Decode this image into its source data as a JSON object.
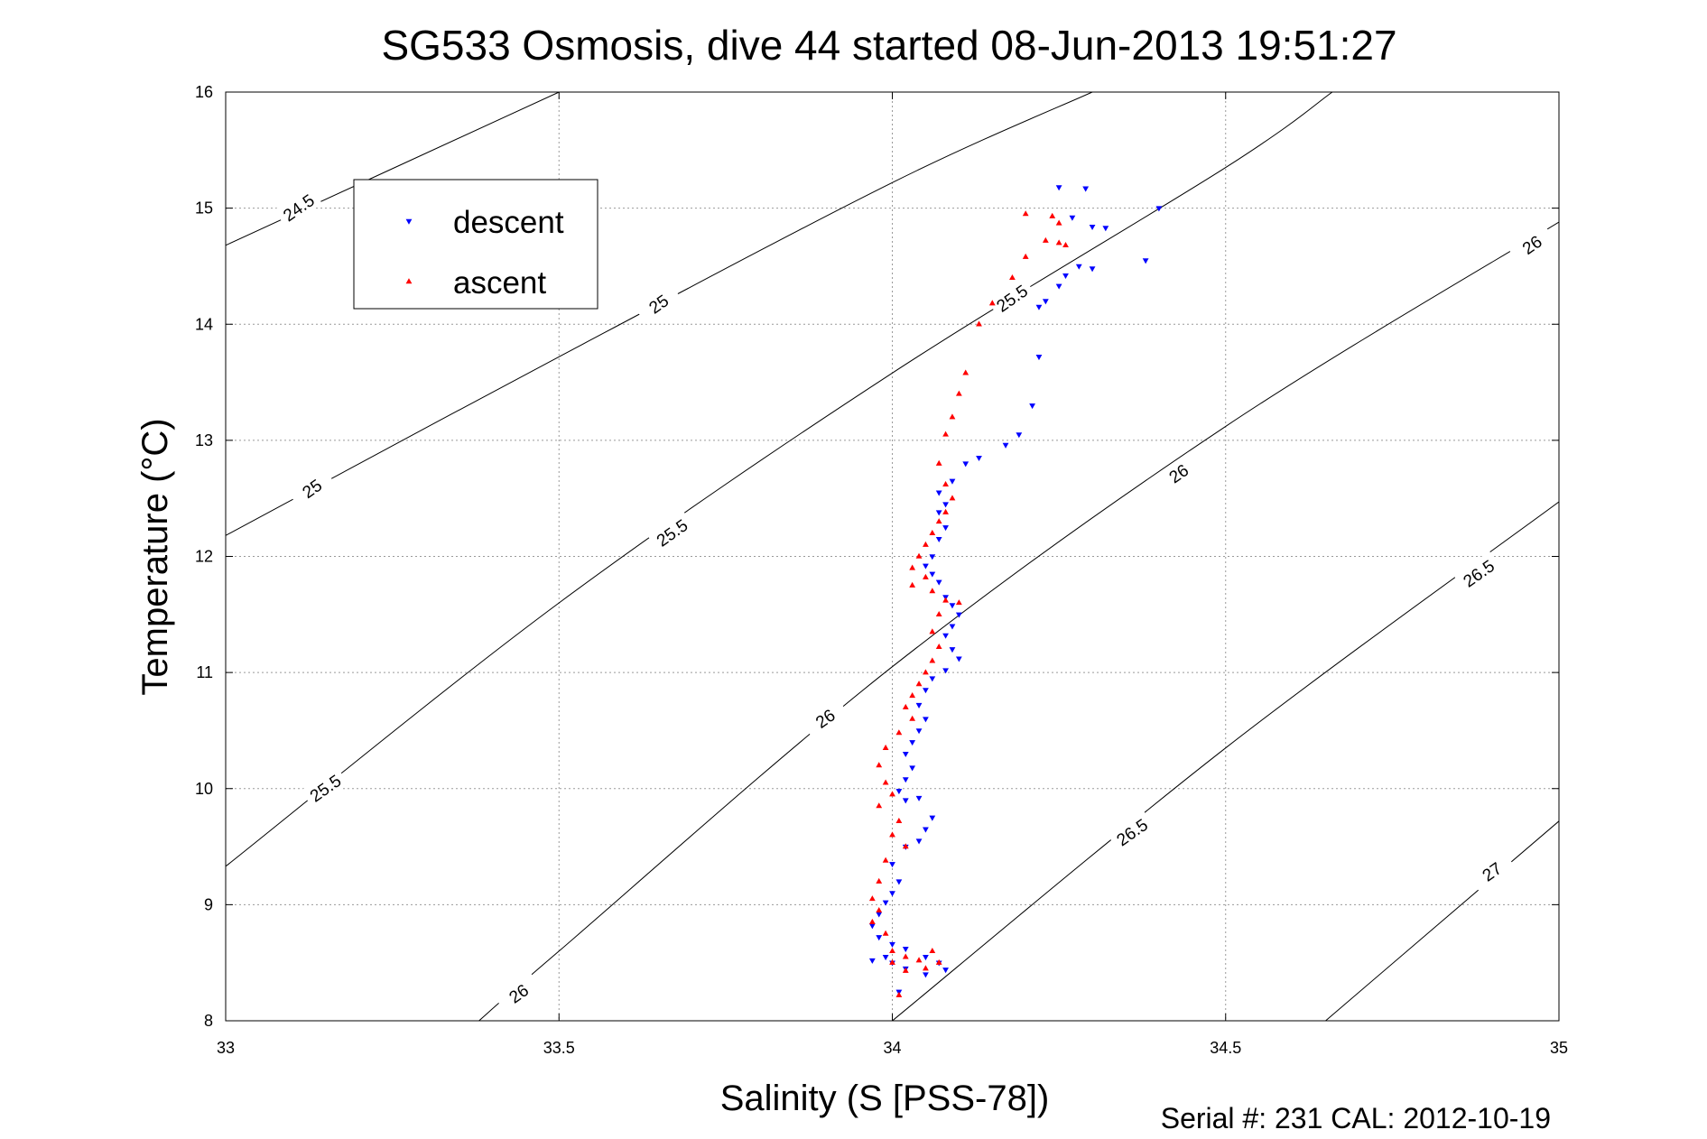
{
  "chart_data": {
    "type": "scatter",
    "title": "SG533 Osmosis, dive 44 started 08-Jun-2013 19:51:27",
    "xlabel": "Salinity (S [PSS-78])",
    "ylabel": "Temperature (°C)",
    "xlim": [
      33,
      35
    ],
    "ylim": [
      8,
      16
    ],
    "xticks": [
      "33",
      "33.5",
      "34",
      "34.5",
      "35"
    ],
    "yticks": [
      "8",
      "9",
      "10",
      "11",
      "12",
      "13",
      "14",
      "15",
      "16"
    ],
    "grid": true,
    "legend_position": "top-left",
    "footer": "Serial #: 231  CAL: 2012-10-19",
    "contours": [
      {
        "label": "24.5",
        "points": [
          [
            33,
            14.68
          ],
          [
            33.5,
            16.0
          ]
        ]
      },
      {
        "label": "25",
        "points": [
          [
            33,
            12.18
          ],
          [
            33.5,
            13.72
          ],
          [
            34.0,
            15.22
          ],
          [
            34.3,
            16.0
          ]
        ]
      },
      {
        "label": "25.5",
        "points": [
          [
            33,
            9.33
          ],
          [
            33.5,
            11.6
          ],
          [
            34.0,
            13.58
          ],
          [
            34.5,
            15.35
          ],
          [
            34.66,
            16.0
          ]
        ]
      },
      {
        "label": "26",
        "points": [
          [
            33.38,
            8.0
          ],
          [
            33.5,
            8.6
          ],
          [
            34.0,
            11.05
          ],
          [
            34.5,
            13.12
          ],
          [
            35.0,
            14.88
          ]
        ]
      },
      {
        "label": "26.5",
        "points": [
          [
            34.0,
            8.0
          ],
          [
            34.5,
            10.35
          ],
          [
            35.0,
            12.47
          ]
        ]
      },
      {
        "label": "27",
        "points": [
          [
            34.65,
            8.0
          ],
          [
            35.0,
            9.72
          ]
        ]
      }
    ],
    "contour_labels": [
      {
        "text": "24.5",
        "x": 33.11,
        "y": 15.0
      },
      {
        "text": "25",
        "x": 33.13,
        "y": 12.58
      },
      {
        "text": "25",
        "x": 33.65,
        "y": 14.17
      },
      {
        "text": "25.5",
        "x": 33.15,
        "y": 10.0
      },
      {
        "text": "25.5",
        "x": 33.67,
        "y": 12.2
      },
      {
        "text": "25.5",
        "x": 34.18,
        "y": 14.22
      },
      {
        "text": "26",
        "x": 33.44,
        "y": 8.23
      },
      {
        "text": "26",
        "x": 33.9,
        "y": 10.6
      },
      {
        "text": "26",
        "x": 34.43,
        "y": 12.71
      },
      {
        "text": "26",
        "x": 34.96,
        "y": 14.68
      },
      {
        "text": "26.5",
        "x": 34.36,
        "y": 9.62
      },
      {
        "text": "26.5",
        "x": 34.88,
        "y": 11.85
      },
      {
        "text": "27",
        "x": 34.9,
        "y": 9.28
      }
    ],
    "series": [
      {
        "name": "descent",
        "marker": "triangle-down",
        "color": "#0000ff",
        "points": [
          [
            34.25,
            15.18
          ],
          [
            34.29,
            15.17
          ],
          [
            34.27,
            14.92
          ],
          [
            34.3,
            14.84
          ],
          [
            34.32,
            14.83
          ],
          [
            34.4,
            15.0
          ],
          [
            34.28,
            14.5
          ],
          [
            34.3,
            14.48
          ],
          [
            34.26,
            14.42
          ],
          [
            34.25,
            14.33
          ],
          [
            34.23,
            14.2
          ],
          [
            34.22,
            14.15
          ],
          [
            34.38,
            14.55
          ],
          [
            34.22,
            13.72
          ],
          [
            34.21,
            13.3
          ],
          [
            34.19,
            13.05
          ],
          [
            34.17,
            12.96
          ],
          [
            34.13,
            12.85
          ],
          [
            34.11,
            12.8
          ],
          [
            34.09,
            12.65
          ],
          [
            34.07,
            12.55
          ],
          [
            34.08,
            12.45
          ],
          [
            34.07,
            12.38
          ],
          [
            34.08,
            12.25
          ],
          [
            34.07,
            12.15
          ],
          [
            34.06,
            12.0
          ],
          [
            34.05,
            11.92
          ],
          [
            34.06,
            11.85
          ],
          [
            34.07,
            11.78
          ],
          [
            34.08,
            11.65
          ],
          [
            34.09,
            11.58
          ],
          [
            34.1,
            11.5
          ],
          [
            34.09,
            11.4
          ],
          [
            34.08,
            11.32
          ],
          [
            34.09,
            11.2
          ],
          [
            34.1,
            11.12
          ],
          [
            34.08,
            11.02
          ],
          [
            34.06,
            10.95
          ],
          [
            34.05,
            10.85
          ],
          [
            34.04,
            10.72
          ],
          [
            34.05,
            10.6
          ],
          [
            34.04,
            10.5
          ],
          [
            34.03,
            10.4
          ],
          [
            34.02,
            10.3
          ],
          [
            34.03,
            10.18
          ],
          [
            34.02,
            10.08
          ],
          [
            34.01,
            9.98
          ],
          [
            34.02,
            9.9
          ],
          [
            34.04,
            9.92
          ],
          [
            34.06,
            9.75
          ],
          [
            34.05,
            9.65
          ],
          [
            34.04,
            9.55
          ],
          [
            34.02,
            9.5
          ],
          [
            34.0,
            9.35
          ],
          [
            34.01,
            9.2
          ],
          [
            34.0,
            9.1
          ],
          [
            33.99,
            9.02
          ],
          [
            33.98,
            8.92
          ],
          [
            33.97,
            8.82
          ],
          [
            33.98,
            8.72
          ],
          [
            34.0,
            8.66
          ],
          [
            34.02,
            8.62
          ],
          [
            34.05,
            8.55
          ],
          [
            34.07,
            8.5
          ],
          [
            34.08,
            8.44
          ],
          [
            34.05,
            8.4
          ],
          [
            34.02,
            8.45
          ],
          [
            34.0,
            8.5
          ],
          [
            33.99,
            8.55
          ],
          [
            33.97,
            8.52
          ],
          [
            34.01,
            8.25
          ]
        ]
      },
      {
        "name": "ascent",
        "marker": "triangle-up",
        "color": "#ff0000",
        "points": [
          [
            34.2,
            14.95
          ],
          [
            34.24,
            14.93
          ],
          [
            34.25,
            14.87
          ],
          [
            34.23,
            14.72
          ],
          [
            34.25,
            14.7
          ],
          [
            34.26,
            14.68
          ],
          [
            34.2,
            14.58
          ],
          [
            34.18,
            14.4
          ],
          [
            34.15,
            14.18
          ],
          [
            34.13,
            14.0
          ],
          [
            34.11,
            13.58
          ],
          [
            34.1,
            13.4
          ],
          [
            34.09,
            13.2
          ],
          [
            34.08,
            13.05
          ],
          [
            34.07,
            12.8
          ],
          [
            34.08,
            12.62
          ],
          [
            34.09,
            12.5
          ],
          [
            34.08,
            12.38
          ],
          [
            34.07,
            12.3
          ],
          [
            34.06,
            12.2
          ],
          [
            34.05,
            12.1
          ],
          [
            34.04,
            12.0
          ],
          [
            34.03,
            11.9
          ],
          [
            34.05,
            11.82
          ],
          [
            34.03,
            11.75
          ],
          [
            34.06,
            11.7
          ],
          [
            34.08,
            11.62
          ],
          [
            34.1,
            11.6
          ],
          [
            34.07,
            11.5
          ],
          [
            34.06,
            11.35
          ],
          [
            34.07,
            11.22
          ],
          [
            34.06,
            11.1
          ],
          [
            34.05,
            11.0
          ],
          [
            34.04,
            10.9
          ],
          [
            34.03,
            10.8
          ],
          [
            34.02,
            10.7
          ],
          [
            34.03,
            10.6
          ],
          [
            34.01,
            10.48
          ],
          [
            33.99,
            10.35
          ],
          [
            33.98,
            10.2
          ],
          [
            33.99,
            10.05
          ],
          [
            34.0,
            9.95
          ],
          [
            33.98,
            9.85
          ],
          [
            34.01,
            9.72
          ],
          [
            34.0,
            9.6
          ],
          [
            34.02,
            9.5
          ],
          [
            33.99,
            9.38
          ],
          [
            33.98,
            9.2
          ],
          [
            33.97,
            9.05
          ],
          [
            33.98,
            8.95
          ],
          [
            33.97,
            8.85
          ],
          [
            33.99,
            8.75
          ],
          [
            34.0,
            8.6
          ],
          [
            34.02,
            8.55
          ],
          [
            34.04,
            8.52
          ],
          [
            34.06,
            8.6
          ],
          [
            34.07,
            8.5
          ],
          [
            34.05,
            8.45
          ],
          [
            34.02,
            8.43
          ],
          [
            34.0,
            8.5
          ],
          [
            34.01,
            8.22
          ]
        ]
      }
    ]
  }
}
